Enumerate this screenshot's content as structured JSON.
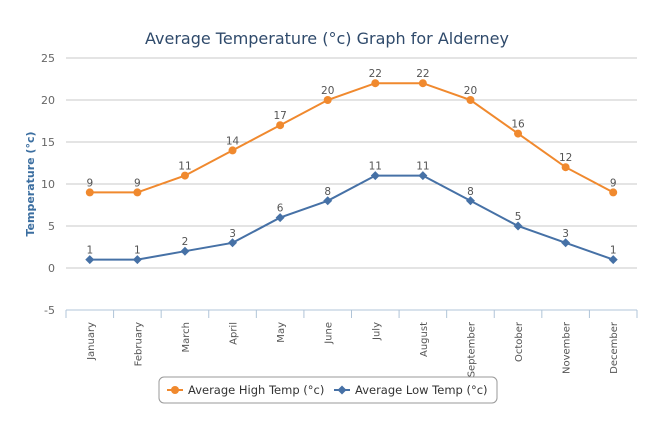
{
  "chart_data": {
    "type": "line",
    "title": "Average Temperature (°c) Graph for Alderney",
    "ylabel": "Temperature (°c)",
    "xlabel": "",
    "ylim": [
      -5,
      25
    ],
    "yticks": [
      -5,
      0,
      5,
      10,
      15,
      20,
      25
    ],
    "grid": true,
    "legend_position": "bottom",
    "categories": [
      "January",
      "February",
      "March",
      "April",
      "May",
      "June",
      "July",
      "August",
      "September",
      "October",
      "November",
      "December"
    ],
    "series": [
      {
        "name": "Average High Temp (°c)",
        "color": "#f0892e",
        "marker": "circle",
        "values": [
          9,
          9,
          11,
          14,
          17,
          20,
          22,
          22,
          20,
          16,
          12,
          9
        ]
      },
      {
        "name": "Average Low Temp (°c)",
        "color": "#4671a6",
        "marker": "diamond",
        "values": [
          1,
          1,
          2,
          3,
          6,
          8,
          11,
          11,
          8,
          5,
          3,
          1
        ]
      }
    ]
  }
}
